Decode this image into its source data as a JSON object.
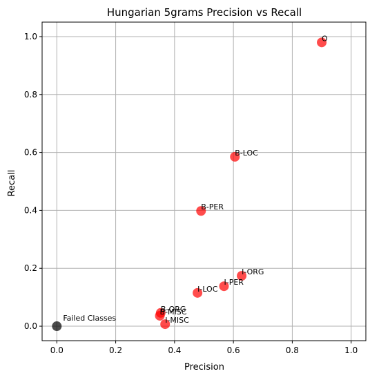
{
  "chart_data": {
    "type": "scatter",
    "title": "Hungarian 5grams Precision vs Recall",
    "xlabel": "Precision",
    "ylabel": "Recall",
    "xlim": [
      -0.05,
      1.05
    ],
    "ylim": [
      -0.05,
      1.05
    ],
    "xticks": [
      "0.0",
      "0.2",
      "0.4",
      "0.6",
      "0.8",
      "1.0"
    ],
    "yticks": [
      "0.0",
      "0.2",
      "0.4",
      "0.6",
      "0.8",
      "1.0"
    ],
    "grid": true,
    "colors": {
      "point": "#ff0000",
      "failed": "#000000",
      "grid": "#b0b0b0"
    },
    "points": [
      {
        "label": "O",
        "x": 0.9,
        "y": 0.98
      },
      {
        "label": "B-LOC",
        "x": 0.605,
        "y": 0.585
      },
      {
        "label": "B-PER",
        "x": 0.49,
        "y": 0.398
      },
      {
        "label": "I-ORG",
        "x": 0.628,
        "y": 0.174
      },
      {
        "label": "I-PER",
        "x": 0.568,
        "y": 0.138
      },
      {
        "label": "I-LOC",
        "x": 0.478,
        "y": 0.115
      },
      {
        "label": "B-ORG",
        "x": 0.353,
        "y": 0.046
      },
      {
        "label": "B-MISC",
        "x": 0.35,
        "y": 0.036
      },
      {
        "label": "I-MISC",
        "x": 0.368,
        "y": 0.007
      }
    ],
    "failed": {
      "label": "Failed Classes",
      "x": 0.0,
      "y": 0.0
    }
  }
}
